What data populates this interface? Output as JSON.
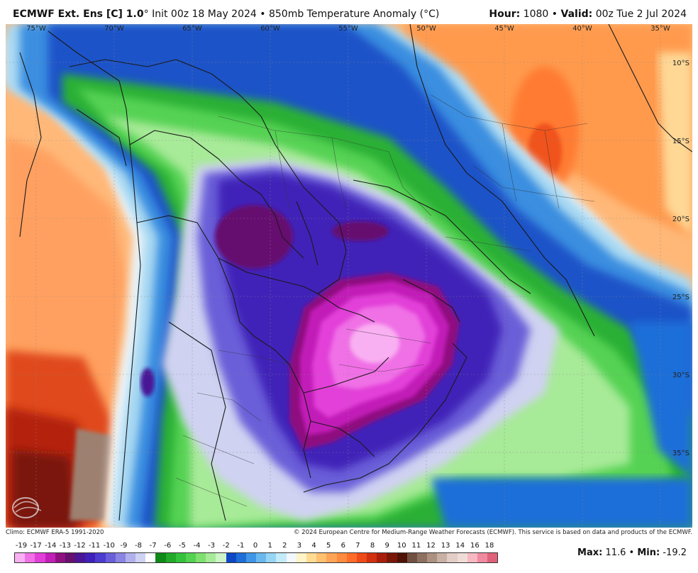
{
  "header": {
    "model": "ECMWF Ext. Ens [C] 1.0",
    "degree_mark": "°",
    "init_text": "Init 00z 18 May 2024",
    "separator": "•",
    "product": "850mb Temperature Anomaly (°C)",
    "hour_label": "Hour:",
    "hour_value": "1080",
    "valid_label": "Valid:",
    "valid_value": "00z Tue 2 Jul 2024"
  },
  "map": {
    "lon_labels": [
      "75°W",
      "70°W",
      "65°W",
      "60°W",
      "55°W",
      "50°W",
      "45°W",
      "40°W",
      "35°W"
    ],
    "lat_labels": [
      "10°S",
      "15°S",
      "20°S",
      "25°S",
      "30°S",
      "35°S"
    ],
    "overlays": [
      "graticule",
      "country-borders",
      "state-borders"
    ]
  },
  "footer": {
    "climo": "Climo: ECMWF ERA-5 1991-2020",
    "copyright": "© 2024 European Centre for Medium-Range Weather Forecasts (ECMWF). This service is based on data and products of the ECMWF."
  },
  "legend": {
    "labels": [
      "-19",
      "-17",
      "-14",
      "-13",
      "-12",
      "-11",
      "-10",
      "-9",
      "-8",
      "-7",
      "-6",
      "-5",
      "-4",
      "-3",
      "-2",
      "-1",
      "0",
      "1",
      "2",
      "3",
      "4",
      "5",
      "6",
      "7",
      "8",
      "9",
      "10",
      "11",
      "12",
      "13",
      "14",
      "16",
      "18"
    ],
    "colors": [
      "#f9b0f2",
      "#f070e6",
      "#e23fd8",
      "#c21fb8",
      "#8e117f",
      "#661070",
      "#4a1596",
      "#3f20b8",
      "#4c3cd0",
      "#6a5ed8",
      "#8a84e2",
      "#b2b0ec",
      "#d0d2f2",
      "#ffffff",
      "#0f8a18",
      "#22a92a",
      "#34c23c",
      "#54d252",
      "#7ee06e",
      "#a7ea98",
      "#cdf3c8",
      "#0f48c4",
      "#1f6ed8",
      "#3f96e6",
      "#6ab8ef",
      "#97d5f5",
      "#c4ebfa",
      "#f2f8fc",
      "#fff4c8",
      "#ffdc92",
      "#ffc070",
      "#ffa456",
      "#ff8a40",
      "#ff6c2a",
      "#ee4a1a",
      "#d0300e",
      "#a81e0a",
      "#7a1608",
      "#4e1206",
      "#705040",
      "#8e7060",
      "#ac9080",
      "#c8b0a4",
      "#e2cec6",
      "#f0dcd6",
      "#f7b8c2",
      "#ef8aa0",
      "#e0627a"
    ]
  },
  "stats": {
    "max_label": "Max:",
    "max_value": "11.6",
    "min_label": "Min:",
    "min_value": "-19.2"
  }
}
